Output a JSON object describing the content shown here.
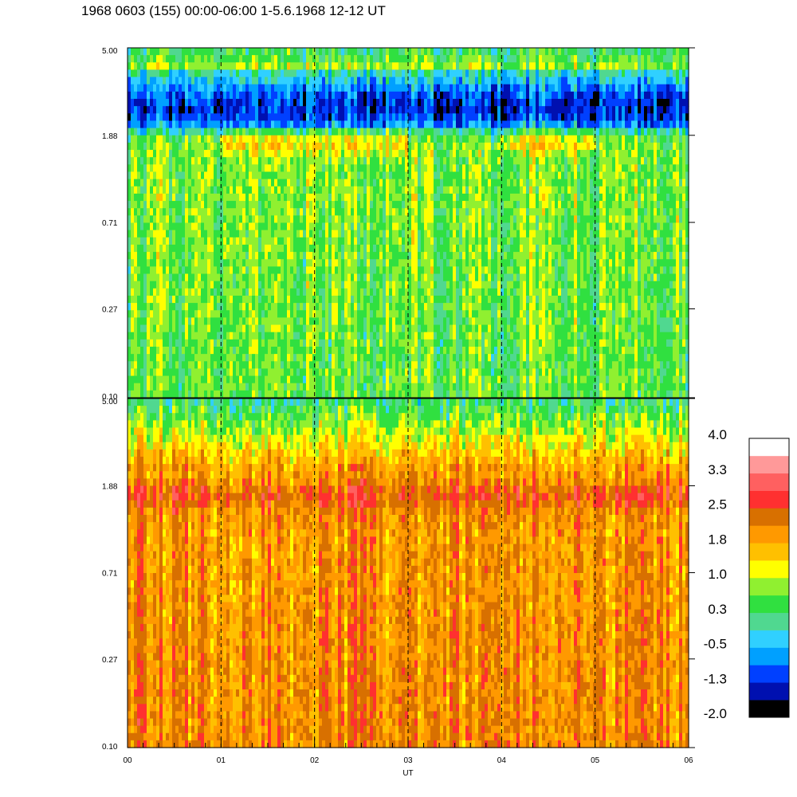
{
  "header": {
    "title": "1968 0603 (155) 00:00-06:00 1-5.6.1968  12-12 UT"
  },
  "chart_data": {
    "type": "heatmap",
    "title": "1968 0603 (155) 00:00-06:00 1-5.6.1968  12-12 UT",
    "xlabel": "UT",
    "x_ticks": [
      "00",
      "01",
      "02",
      "03",
      "04",
      "05",
      "06"
    ],
    "xlim": [
      0,
      6
    ],
    "x_dashed_gridlines": [
      1,
      2,
      3,
      4,
      5
    ],
    "ylabel": "",
    "y_scale": "log",
    "ylim": [
      0.1,
      5.0
    ],
    "y_ticks": [
      "5.00",
      "1.88",
      "0.71",
      "0.27",
      "0.10"
    ],
    "panels": [
      {
        "name": "",
        "ylim": [
          0.1,
          5.0
        ],
        "overall_level": "green 0.3 to 1.0 with cyan/blue -0.5 to -1.3 above 1.88 and yellow bands near 1.88",
        "bands": [
          {
            "y_range": [
              1.6,
              2.0
            ],
            "x_range": [
              1.0,
              3.0
            ],
            "level": 1.0
          },
          {
            "y_range": [
              1.6,
              2.0
            ],
            "x_range": [
              4.0,
              5.0
            ],
            "level": 1.0
          },
          {
            "y_range": [
              2.0,
              4.0
            ],
            "x_range": [
              0,
              6
            ],
            "level": -0.5
          },
          {
            "y_range": [
              4.4,
              4.7
            ],
            "x_range": [
              0,
              6
            ],
            "level": 1.0
          }
        ]
      },
      {
        "name": "",
        "ylim": [
          0.1,
          5.0
        ],
        "overall_level": "orange 1.8 to 2.5 with yellow/green near 5.00 and a dark orange band near 1.88",
        "bands": [
          {
            "y_range": [
              1.5,
              1.9
            ],
            "x_range": [
              0,
              6
            ],
            "level": 2.5
          },
          {
            "y_range": [
              3.0,
              5.0
            ],
            "x_range": [
              0,
              6
            ],
            "level": 0.8
          }
        ]
      }
    ],
    "colorbar": {
      "tick_labels": [
        "4.0",
        "3.3",
        "2.5",
        "1.8",
        "1.0",
        "0.3",
        "-0.5",
        "-1.3",
        "-2.0"
      ],
      "range": [
        -2.0,
        4.0
      ],
      "colors": [
        "#000000",
        "#0010b0",
        "#0040ff",
        "#00a0ff",
        "#30d0ff",
        "#50d890",
        "#30e040",
        "#90f030",
        "#ffff00",
        "#ffc000",
        "#ff9900",
        "#d87000",
        "#ff3030",
        "#ff6060",
        "#ff9999",
        "#ffffff"
      ]
    }
  }
}
